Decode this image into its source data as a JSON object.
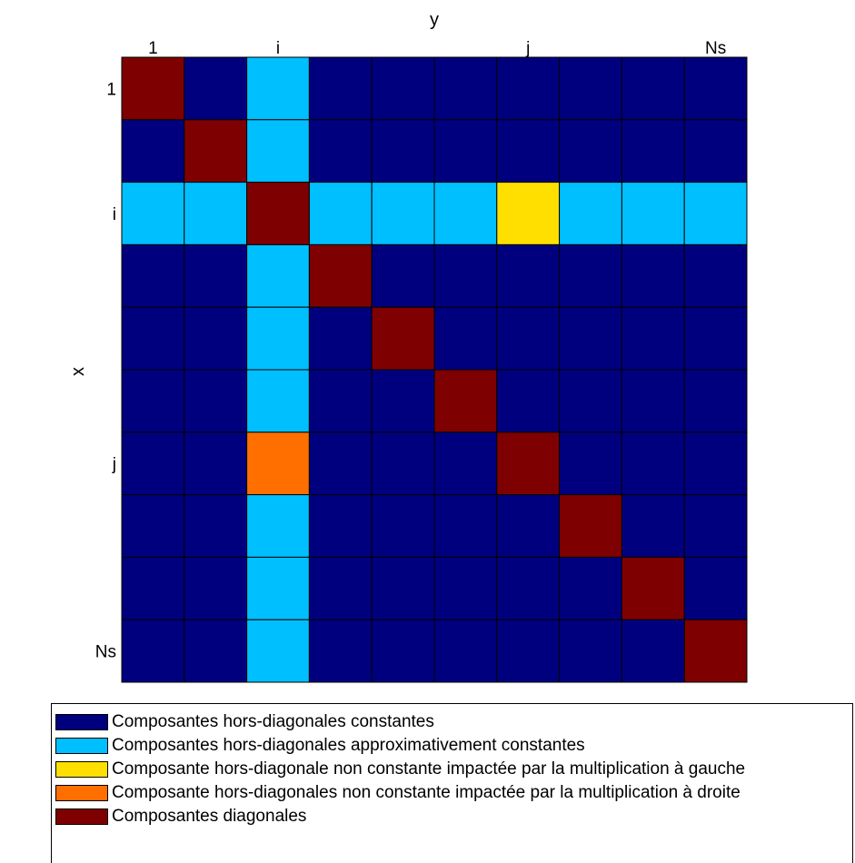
{
  "colors": {
    "constant": "#00007F",
    "approx_constant": "#00BFFF",
    "left_mult": "#FFDF00",
    "right_mult": "#FF6F00",
    "diagonal": "#7F0000"
  },
  "chart_data": {
    "type": "heatmap",
    "xlabel": "y",
    "ylabel": "x",
    "x_ticks": [
      {
        "index": 0,
        "label": "1"
      },
      {
        "index": 2,
        "label": "i"
      },
      {
        "index": 6,
        "label": "j"
      },
      {
        "index": 9,
        "label": "Ns"
      }
    ],
    "y_ticks": [
      {
        "index": 0,
        "label": "1"
      },
      {
        "index": 2,
        "label": "i"
      },
      {
        "index": 6,
        "label": "j"
      },
      {
        "index": 9,
        "label": "Ns"
      }
    ],
    "categories_legend": [
      {
        "key": "constant",
        "label": "Composantes hors-diagonales constantes"
      },
      {
        "key": "approx_constant",
        "label": "Composantes hors-diagonales approximativement constantes"
      },
      {
        "key": "left_mult",
        "label": "Composante hors-diagonale non constante impactée par la multiplication à gauche"
      },
      {
        "key": "right_mult",
        "label": "Composante hors-diagonales non constante impactée par la multiplication à droite"
      },
      {
        "key": "diagonal",
        "label": "Composantes diagonales"
      }
    ],
    "matrix": [
      [
        "diagonal",
        "constant",
        "approx_constant",
        "constant",
        "constant",
        "constant",
        "constant",
        "constant",
        "constant",
        "constant"
      ],
      [
        "constant",
        "diagonal",
        "approx_constant",
        "constant",
        "constant",
        "constant",
        "constant",
        "constant",
        "constant",
        "constant"
      ],
      [
        "approx_constant",
        "approx_constant",
        "diagonal",
        "approx_constant",
        "approx_constant",
        "approx_constant",
        "left_mult",
        "approx_constant",
        "approx_constant",
        "approx_constant"
      ],
      [
        "constant",
        "constant",
        "approx_constant",
        "diagonal",
        "constant",
        "constant",
        "constant",
        "constant",
        "constant",
        "constant"
      ],
      [
        "constant",
        "constant",
        "approx_constant",
        "constant",
        "diagonal",
        "constant",
        "constant",
        "constant",
        "constant",
        "constant"
      ],
      [
        "constant",
        "constant",
        "approx_constant",
        "constant",
        "constant",
        "diagonal",
        "constant",
        "constant",
        "constant",
        "constant"
      ],
      [
        "constant",
        "constant",
        "right_mult",
        "constant",
        "constant",
        "constant",
        "diagonal",
        "constant",
        "constant",
        "constant"
      ],
      [
        "constant",
        "constant",
        "approx_constant",
        "constant",
        "constant",
        "constant",
        "constant",
        "diagonal",
        "constant",
        "constant"
      ],
      [
        "constant",
        "constant",
        "approx_constant",
        "constant",
        "constant",
        "constant",
        "constant",
        "constant",
        "diagonal",
        "constant"
      ],
      [
        "constant",
        "constant",
        "approx_constant",
        "constant",
        "constant",
        "constant",
        "constant",
        "constant",
        "constant",
        "diagonal"
      ]
    ]
  }
}
